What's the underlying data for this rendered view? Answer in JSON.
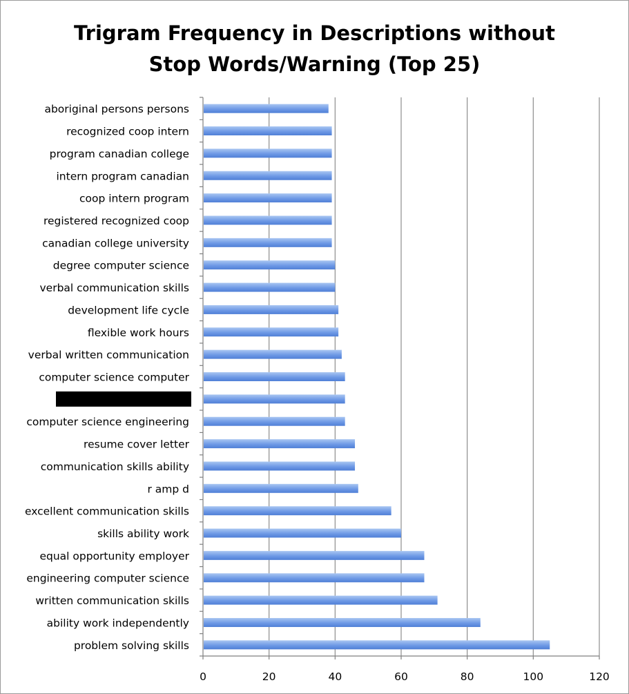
{
  "chart_data": {
    "type": "bar",
    "orientation": "horizontal",
    "title_lines": [
      "Trigram Frequency in Descriptions without",
      "Stop Words/Warning (Top 25)"
    ],
    "categories": [
      "aboriginal persons persons",
      "recognized coop intern",
      "program canadian college",
      "intern program canadian",
      "coop intern program",
      "registered recognized coop",
      "canadian college university",
      "degree computer science",
      "verbal communication skills",
      "development life cycle",
      "flexible work hours",
      "verbal written communication",
      "computer science computer",
      "",
      "computer science engineering",
      "resume cover letter",
      "communication skills ability",
      "r amp d",
      "excellent communication skills",
      "skills ability work",
      "equal opportunity employer",
      "engineering computer science",
      "written communication skills",
      "ability work independently",
      "problem solving skills"
    ],
    "redacted_index": 13,
    "values": [
      38,
      39,
      39,
      39,
      39,
      39,
      39,
      40,
      40,
      41,
      41,
      42,
      43,
      43,
      43,
      46,
      46,
      47,
      57,
      60,
      67,
      67,
      71,
      84,
      105
    ],
    "xlim": [
      0,
      120
    ],
    "xticks": [
      0,
      20,
      40,
      60,
      80,
      100,
      120
    ],
    "grid": "vertical",
    "legend": "none",
    "colors": {
      "bar_light": "#a9c6f2",
      "bar_mid": "#6f9ae6",
      "bar_dark": "#4f7fd6",
      "gridline": "#8c8c8c",
      "axis": "#7f7f7f",
      "redaction": "#000000"
    }
  }
}
